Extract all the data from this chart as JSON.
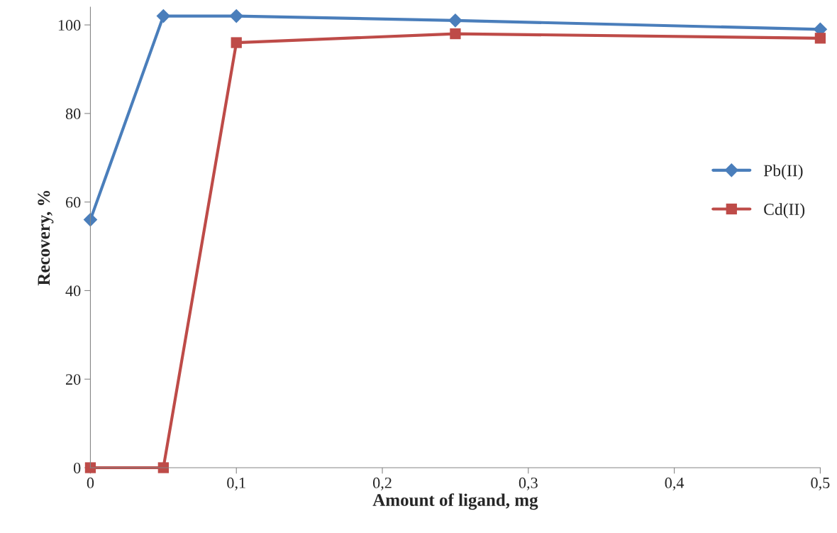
{
  "chart_data": {
    "type": "line",
    "xlabel": "Amount of ligand, mg",
    "ylabel": "Recovery, %",
    "x": [
      0,
      0.05,
      0.1,
      0.25,
      0.5
    ],
    "series": [
      {
        "name": "Pb(II)",
        "color": "#4a7ebb",
        "marker": "diamond",
        "values": [
          56,
          102,
          102,
          101,
          99
        ]
      },
      {
        "name": "Cd(II)",
        "color": "#be4b48",
        "marker": "square",
        "values": [
          0,
          0,
          96,
          98,
          97
        ]
      }
    ],
    "xlim": [
      0,
      0.5
    ],
    "xticks": [
      0,
      {
        "value": 0.1,
        "label": "0,1"
      },
      {
        "value": 0.2,
        "label": "0,2"
      },
      {
        "value": 0.3,
        "label": "0,3"
      },
      {
        "value": 0.4,
        "label": "0,4"
      },
      {
        "value": 0.5,
        "label": "0,5"
      }
    ],
    "ylim": [
      0,
      104
    ],
    "yticks": [
      0,
      20,
      40,
      60,
      80,
      100
    ],
    "grid": false,
    "legend": "right",
    "line_style": "solid"
  }
}
